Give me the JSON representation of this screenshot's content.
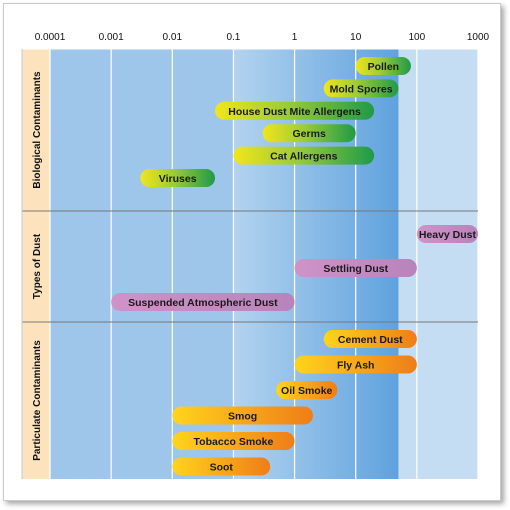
{
  "chart_data": {
    "type": "bar",
    "orientation": "horizontal-range",
    "x_scale": "log",
    "x_ticks": [
      "0.0001",
      "0.001",
      "0.01",
      "0.1",
      "1",
      "10",
      "100",
      "1000"
    ],
    "xlim": [
      0.0001,
      1000
    ],
    "grid": true,
    "groups": [
      {
        "name": "Biological Contaminants",
        "items": [
          {
            "label": "Pollen",
            "range": [
              10,
              80
            ]
          },
          {
            "label": "Mold Spores",
            "range": [
              3,
              50
            ]
          },
          {
            "label": "House Dust Mite Allergens",
            "range": [
              0.05,
              20
            ]
          },
          {
            "label": "Germs",
            "range": [
              0.3,
              10
            ]
          },
          {
            "label": "Cat Allergens",
            "range": [
              0.1,
              20
            ]
          },
          {
            "label": "Viruses",
            "range": [
              0.003,
              0.05
            ]
          }
        ]
      },
      {
        "name": "Types of Dust",
        "items": [
          {
            "label": "Heavy Dust",
            "range": [
              100,
              1000
            ]
          },
          {
            "label": "Settling Dust",
            "range": [
              1,
              100
            ]
          },
          {
            "label": "Suspended Atmospheric Dust",
            "range": [
              0.001,
              1
            ]
          }
        ]
      },
      {
        "name": "Particulate Contaminants",
        "items": [
          {
            "label": "Cement Dust",
            "range": [
              3,
              100
            ]
          },
          {
            "label": "Fly Ash",
            "range": [
              1,
              100
            ]
          },
          {
            "label": "Oil Smoke",
            "range": [
              0.5,
              5
            ]
          },
          {
            "label": "Smog",
            "range": [
              0.01,
              2
            ]
          },
          {
            "label": "Tobacco Smoke",
            "range": [
              0.01,
              1
            ]
          },
          {
            "label": "Soot",
            "range": [
              0.01,
              0.4
            ]
          }
        ]
      }
    ],
    "colors": {
      "background_light": "#c5ddf2",
      "background_mid": "#9dc6ea",
      "band_highlight": "#6aa9e0",
      "label_column": "#fde3bd",
      "grid": "#ffffff",
      "divider": "#777777",
      "biological_bar": "#2f9e47",
      "biological_bar_light": "#e5e11d",
      "dust_bar": "#c28ac0",
      "particulate_bar": "#f08a1a",
      "particulate_bar_light": "#ffd01a"
    }
  }
}
